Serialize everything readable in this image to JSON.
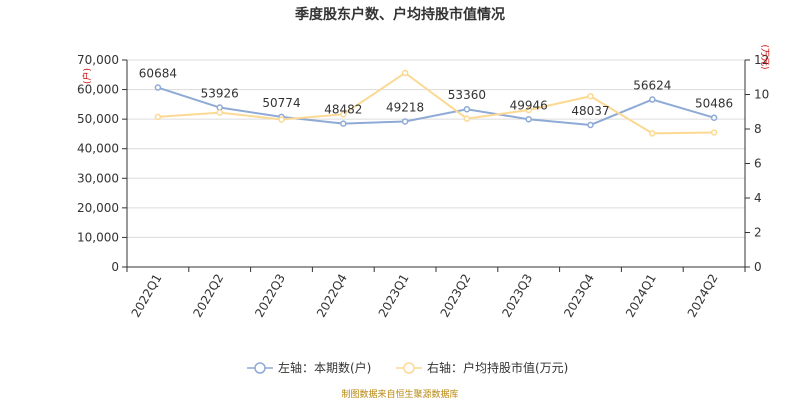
{
  "chart_data": {
    "type": "line",
    "title": "季度股东户数、户均持股市值情况",
    "categories": [
      "2022Q1",
      "2022Q2",
      "2022Q3",
      "2022Q4",
      "2023Q1",
      "2023Q2",
      "2023Q3",
      "2023Q4",
      "2024Q1",
      "2024Q2"
    ],
    "left_axis": {
      "unit": "(户)",
      "ylim": [
        0,
        70000
      ],
      "ticks": [
        0,
        10000,
        20000,
        30000,
        40000,
        50000,
        60000,
        70000
      ],
      "tick_labels": [
        "0",
        "10,000",
        "20,000",
        "30,000",
        "40,000",
        "50,000",
        "60,000",
        "70,000"
      ]
    },
    "right_axis": {
      "unit": "(万元)",
      "ylim": [
        0,
        12
      ],
      "ticks": [
        0,
        2,
        4,
        6,
        8,
        10,
        12
      ],
      "tick_labels": [
        "0",
        "2",
        "4",
        "6",
        "8",
        "10",
        "12"
      ]
    },
    "series": [
      {
        "name": "本期数(户)",
        "legend_label": "左轴：本期数(户)",
        "axis": "left",
        "color": "#8eaad5",
        "values": [
          60684,
          53926,
          50774,
          48482,
          49218,
          53360,
          49946,
          48037,
          56624,
          50486
        ],
        "data_labels": [
          "60684",
          "53926",
          "50774",
          "48482",
          "49218",
          "53360",
          "49946",
          "48037",
          "56624",
          "50486"
        ]
      },
      {
        "name": "户均持股市值(万元)",
        "legend_label": "右轴：户均持股市值(万元)",
        "axis": "right",
        "color": "#fcd993",
        "values": [
          8.7,
          8.95,
          8.55,
          8.85,
          11.25,
          8.6,
          9.1,
          9.9,
          7.75,
          7.8
        ]
      }
    ],
    "grid": true,
    "legend_position": "bottom-center"
  },
  "source_note": "制图数据来自恒生聚源数据库"
}
